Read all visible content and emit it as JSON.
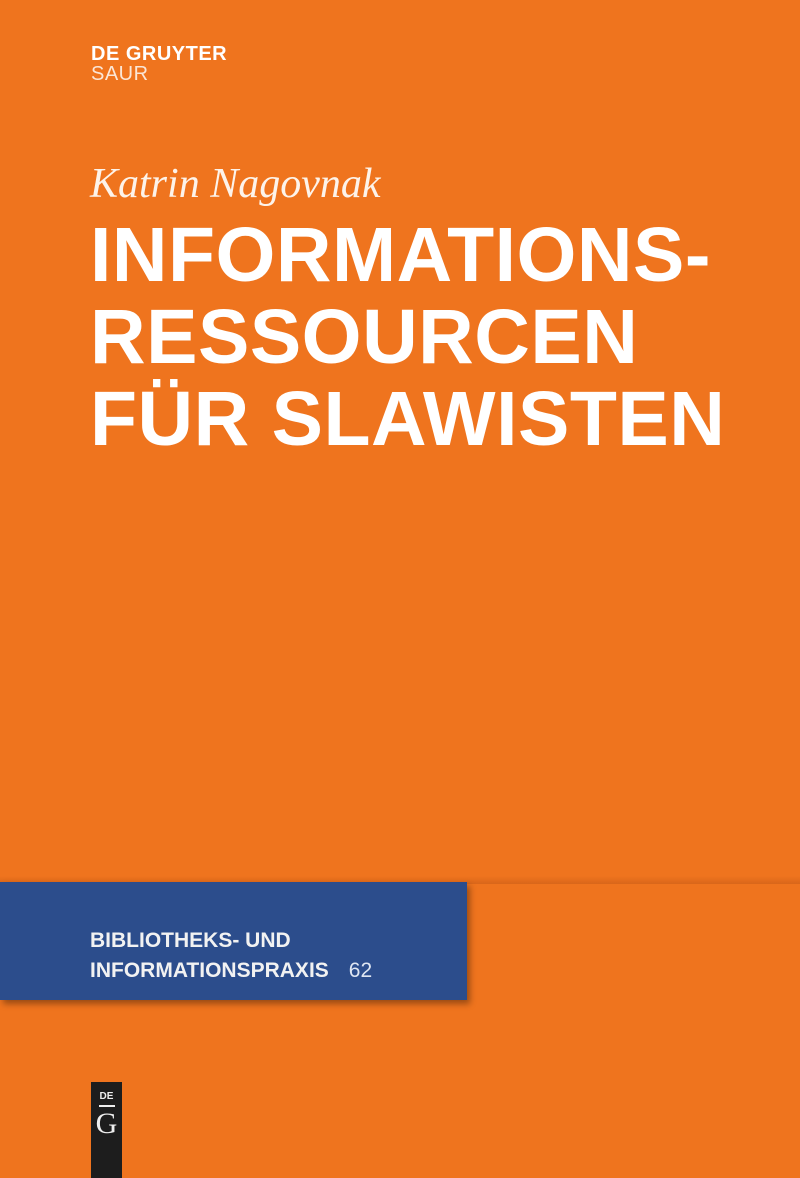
{
  "publisher": {
    "name": "DE GRUYTER",
    "imprint": "SAUR"
  },
  "author": "Katrin Nagovnak",
  "title_lines": [
    "INFORMATIONS-",
    "RESSOURCEN",
    "FÜR SLAWISTEN"
  ],
  "series": {
    "line1": "BIBLIOTHEKS- UND",
    "line2": "INFORMATIONSPRAXIS",
    "number": "62"
  },
  "logo": {
    "top": "DE",
    "bottom": "G"
  },
  "colors": {
    "background": "#EF741E",
    "series_band": "#2C4D8C",
    "logo": "#1d1d1d"
  }
}
